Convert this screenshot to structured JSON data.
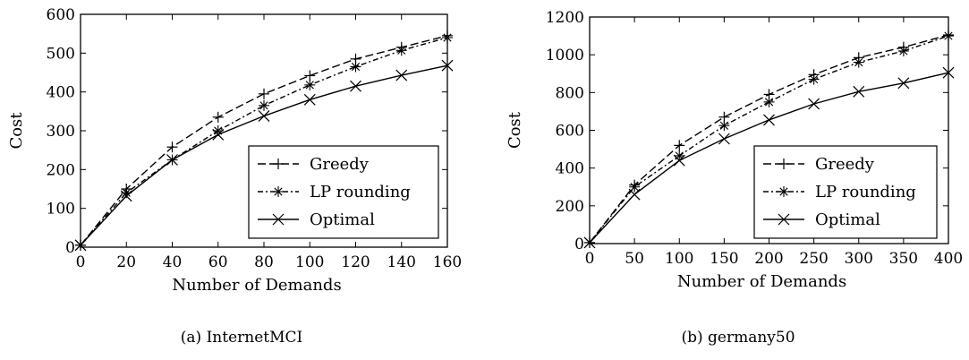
{
  "chart_data": [
    {
      "type": "line",
      "caption": "(a) InternetMCI",
      "xlabel": "Number of Demands",
      "ylabel": "Cost",
      "xlim": [
        0,
        160
      ],
      "ylim": [
        0,
        600
      ],
      "xticks": [
        0,
        20,
        40,
        60,
        80,
        100,
        120,
        140,
        160
      ],
      "yticks": [
        0,
        100,
        200,
        300,
        400,
        500,
        600
      ],
      "grid": false,
      "legend_position": "lower-right",
      "series": [
        {
          "name": "Greedy",
          "marker": "plus",
          "dash": "dashed",
          "x": [
            0,
            20,
            40,
            60,
            80,
            100,
            120,
            140,
            160
          ],
          "y": [
            5,
            150,
            258,
            335,
            395,
            442,
            485,
            515,
            545
          ]
        },
        {
          "name": "LP rounding",
          "marker": "star",
          "dash": "dashdot",
          "x": [
            0,
            20,
            40,
            60,
            80,
            100,
            120,
            140,
            160
          ],
          "y": [
            5,
            140,
            225,
            300,
            365,
            418,
            465,
            507,
            540
          ]
        },
        {
          "name": "Optimal",
          "marker": "x",
          "dash": "solid",
          "x": [
            0,
            20,
            40,
            60,
            80,
            100,
            120,
            140,
            160
          ],
          "y": [
            5,
            132,
            225,
            290,
            338,
            380,
            415,
            443,
            468
          ]
        }
      ]
    },
    {
      "type": "line",
      "caption": "(b) germany50",
      "xlabel": "Number of Demands",
      "ylabel": "Cost",
      "xlim": [
        0,
        400
      ],
      "ylim": [
        0,
        1200
      ],
      "xticks": [
        0,
        50,
        100,
        150,
        200,
        250,
        300,
        350,
        400
      ],
      "yticks": [
        0,
        200,
        400,
        600,
        800,
        1000,
        1200
      ],
      "grid": false,
      "legend_position": "lower-right",
      "series": [
        {
          "name": "Greedy",
          "marker": "plus",
          "dash": "dashed",
          "x": [
            0,
            50,
            100,
            150,
            200,
            250,
            300,
            350,
            400
          ],
          "y": [
            5,
            310,
            520,
            670,
            790,
            895,
            985,
            1040,
            1105
          ]
        },
        {
          "name": "LP rounding",
          "marker": "star",
          "dash": "dashdot",
          "x": [
            0,
            50,
            100,
            150,
            200,
            250,
            300,
            350,
            400
          ],
          "y": [
            5,
            300,
            465,
            625,
            750,
            870,
            960,
            1020,
            1100
          ]
        },
        {
          "name": "Optimal",
          "marker": "x",
          "dash": "solid",
          "x": [
            0,
            50,
            100,
            150,
            200,
            250,
            300,
            350,
            400
          ],
          "y": [
            5,
            260,
            440,
            555,
            655,
            740,
            805,
            850,
            905
          ]
        }
      ]
    }
  ]
}
